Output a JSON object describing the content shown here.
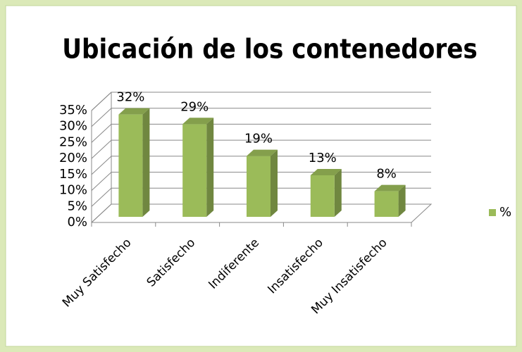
{
  "chart_data": {
    "type": "bar3d",
    "title": "Ubicación de los contenedores",
    "categories": [
      "Muy Satisfecho",
      "Satisfecho",
      "Indiferente",
      "Insatisfecho",
      "Muy Insatisfecho"
    ],
    "series": [
      {
        "name": "%",
        "color": "#9bbb59",
        "values": [
          32,
          29,
          19,
          13,
          8
        ],
        "value_labels": [
          "32%",
          "29%",
          "19%",
          "13%",
          "8%"
        ]
      }
    ],
    "ylim": [
      0,
      35
    ],
    "yticks": [
      {
        "value": 0,
        "label": "0%"
      },
      {
        "value": 5,
        "label": "5%"
      },
      {
        "value": 10,
        "label": "10%"
      },
      {
        "value": 15,
        "label": "15%"
      },
      {
        "value": 20,
        "label": "20%"
      },
      {
        "value": 25,
        "label": "25%"
      },
      {
        "value": 30,
        "label": "30%"
      },
      {
        "value": 35,
        "label": "35%"
      }
    ],
    "grid": true,
    "legend": "right"
  }
}
